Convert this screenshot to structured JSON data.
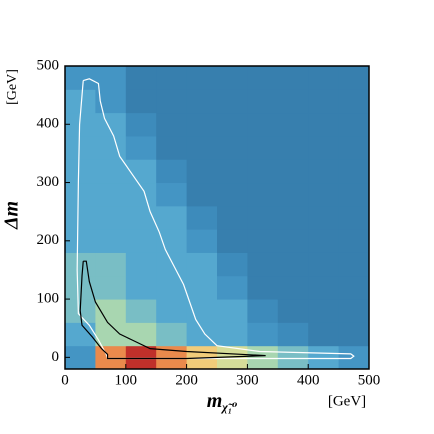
{
  "chart_data": {
    "type": "heatmap",
    "ylabel": "Δm",
    "ylabel_unit": "[GeV]",
    "xlabel": "m",
    "xlabel_sub": "χ̃₁⁰",
    "xlabel_unit": "[GeV]",
    "xlim": [
      0,
      500
    ],
    "ylim": [
      -20,
      500
    ],
    "xticks": [
      0,
      100,
      200,
      300,
      400,
      500
    ],
    "yticks": [
      0,
      100,
      200,
      300,
      400,
      500
    ],
    "x_bins": [
      0,
      50,
      100,
      150,
      200,
      250,
      300,
      350,
      400,
      450,
      500
    ],
    "y_bins": [
      -20,
      20,
      60,
      100,
      140,
      180,
      220,
      260,
      300,
      340,
      380,
      420,
      460,
      500
    ],
    "zlim": [
      0,
      10
    ],
    "colorscale": [
      "#2a6792",
      "#3f8fc0",
      "#5aaed3",
      "#a8d6b0",
      "#f3e28a",
      "#e8743c",
      "#c0302a"
    ],
    "values": [
      [
        2,
        8,
        10,
        8,
        7,
        6,
        5,
        4,
        3,
        2
      ],
      [
        3,
        5,
        5,
        4,
        3,
        3,
        2,
        1.5,
        1,
        1
      ],
      [
        4,
        5,
        4,
        3,
        3,
        3,
        1.5,
        1,
        1,
        1
      ],
      [
        4,
        4,
        3,
        3,
        3,
        2,
        1,
        1,
        1,
        1
      ],
      [
        4,
        4,
        3,
        3,
        3,
        1.5,
        1,
        1,
        1,
        1
      ],
      [
        3,
        3,
        3,
        3,
        2,
        1,
        1,
        1,
        1,
        1
      ],
      [
        3,
        3,
        3,
        3,
        1.5,
        1,
        1,
        1,
        1,
        1
      ],
      [
        3,
        3,
        3,
        2,
        1,
        1,
        1,
        1,
        1,
        1
      ],
      [
        3,
        3,
        3,
        1.5,
        1,
        1,
        1,
        1,
        1,
        1
      ],
      [
        3,
        3,
        2,
        1,
        1,
        1,
        1,
        1,
        1,
        1
      ],
      [
        3,
        3,
        1.5,
        1,
        1,
        1,
        1,
        1,
        1,
        1
      ],
      [
        3,
        2,
        1,
        1,
        1,
        1,
        1,
        1,
        1,
        1
      ],
      [
        2,
        2,
        1,
        1,
        1,
        1,
        1,
        1,
        1,
        1
      ]
    ],
    "contours": [
      {
        "color": "#ffffff",
        "x": [
          30,
          40,
          55,
          58,
          65,
          80,
          90,
          110,
          130,
          140,
          155,
          165,
          180,
          195,
          205,
          215,
          230,
          250,
          320,
          470,
          475,
          470,
          70,
          68,
          55,
          40,
          22,
          20,
          22,
          24,
          30
        ],
        "y": [
          475,
          478,
          470,
          440,
          410,
          380,
          345,
          315,
          285,
          250,
          215,
          185,
          155,
          125,
          95,
          65,
          40,
          20,
          10,
          6,
          2,
          -2,
          -2,
          5,
          30,
          55,
          75,
          150,
          300,
          400,
          475
        ]
      },
      {
        "color": "#000000",
        "x": [
          30,
          35,
          40,
          50,
          70,
          90,
          110,
          140,
          200,
          330,
          200,
          70,
          70,
          60,
          45,
          28,
          25,
          28,
          30
        ],
        "y": [
          165,
          165,
          130,
          95,
          60,
          40,
          30,
          15,
          10,
          3,
          -2,
          -2,
          5,
          15,
          35,
          55,
          80,
          140,
          165
        ]
      }
    ]
  }
}
